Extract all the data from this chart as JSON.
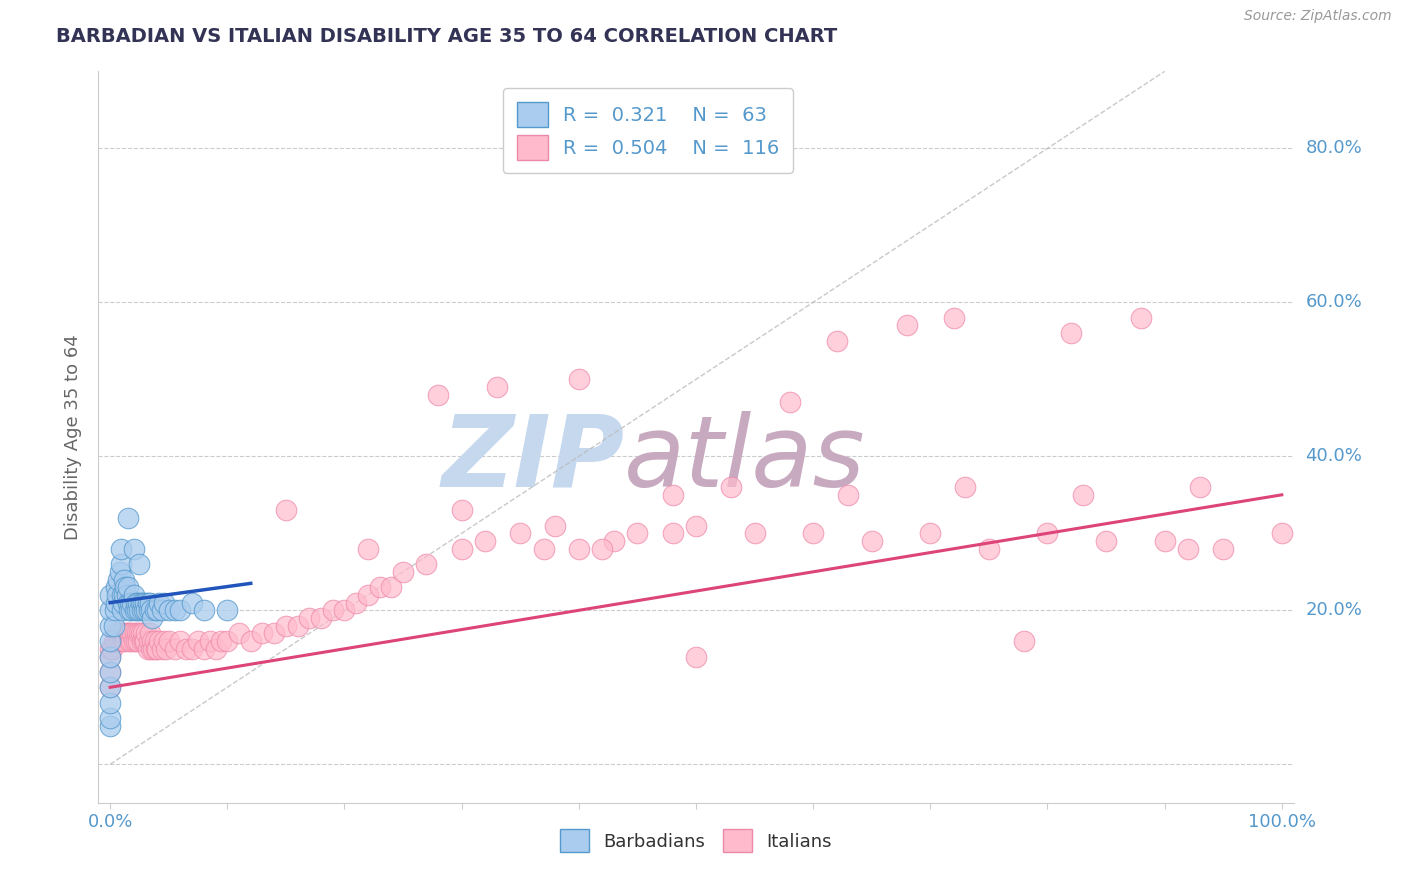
{
  "title": "BARBADIAN VS ITALIAN DISABILITY AGE 35 TO 64 CORRELATION CHART",
  "source_text": "Source: ZipAtlas.com",
  "ylabel": "Disability Age 35 to 64",
  "xlim": [
    -0.01,
    1.01
  ],
  "ylim": [
    -0.05,
    0.9
  ],
  "xtick_positions": [
    0.0,
    0.1,
    0.2,
    0.3,
    0.4,
    0.5,
    0.6,
    0.7,
    0.8,
    0.9,
    1.0
  ],
  "xticklabels": [
    "0.0%",
    "",
    "",
    "",
    "",
    "",
    "",
    "",
    "",
    "",
    "100.0%"
  ],
  "ytick_positions": [
    0.0,
    0.2,
    0.4,
    0.6,
    0.8
  ],
  "yticklabels": [
    "",
    "20.0%",
    "40.0%",
    "60.0%",
    "80.0%"
  ],
  "legend_r_blue": "0.321",
  "legend_n_blue": "63",
  "legend_r_pink": "0.504",
  "legend_n_pink": "116",
  "barbadian_fill": "#aaccee",
  "barbadian_edge": "#5599cc",
  "italian_fill": "#ffbbcc",
  "italian_edge": "#ee88aa",
  "trend_blue": "#2255bb",
  "trend_pink": "#dd4477",
  "diag_color": "#bbbbbb",
  "watermark_zip_color": "#c5d8ee",
  "watermark_atlas_color": "#c8aac0",
  "title_color": "#333355",
  "axis_label_color": "#666666",
  "tick_color": "#5599cc",
  "grid_color": "#cccccc",
  "legend_text_color": "#5599cc",
  "source_color": "#999999",
  "barbadians_x": [
    0.0,
    0.0,
    0.0,
    0.0,
    0.0,
    0.0,
    0.0,
    0.0,
    0.0,
    0.0,
    0.003,
    0.004,
    0.005,
    0.005,
    0.006,
    0.007,
    0.008,
    0.009,
    0.009,
    0.01,
    0.01,
    0.011,
    0.012,
    0.012,
    0.013,
    0.014,
    0.015,
    0.015,
    0.016,
    0.017,
    0.018,
    0.019,
    0.02,
    0.021,
    0.022,
    0.023,
    0.024,
    0.025,
    0.026,
    0.027,
    0.028,
    0.029,
    0.03,
    0.031,
    0.032,
    0.033,
    0.034,
    0.035,
    0.036,
    0.038,
    0.04,
    0.042,
    0.044,
    0.046,
    0.05,
    0.055,
    0.06,
    0.07,
    0.08,
    0.1,
    0.015,
    0.02,
    0.025
  ],
  "barbadians_y": [
    0.05,
    0.06,
    0.08,
    0.1,
    0.12,
    0.14,
    0.16,
    0.18,
    0.2,
    0.22,
    0.18,
    0.2,
    0.21,
    0.23,
    0.22,
    0.24,
    0.25,
    0.26,
    0.28,
    0.2,
    0.22,
    0.21,
    0.22,
    0.24,
    0.23,
    0.22,
    0.21,
    0.23,
    0.2,
    0.21,
    0.2,
    0.21,
    0.22,
    0.2,
    0.21,
    0.2,
    0.21,
    0.2,
    0.21,
    0.2,
    0.21,
    0.2,
    0.21,
    0.2,
    0.21,
    0.2,
    0.21,
    0.2,
    0.19,
    0.2,
    0.2,
    0.21,
    0.2,
    0.21,
    0.2,
    0.2,
    0.2,
    0.21,
    0.2,
    0.2,
    0.32,
    0.28,
    0.26
  ],
  "italians_x": [
    0.0,
    0.0,
    0.0,
    0.0,
    0.002,
    0.003,
    0.004,
    0.005,
    0.006,
    0.007,
    0.008,
    0.009,
    0.01,
    0.011,
    0.012,
    0.013,
    0.014,
    0.015,
    0.016,
    0.017,
    0.018,
    0.019,
    0.02,
    0.021,
    0.022,
    0.023,
    0.024,
    0.025,
    0.026,
    0.027,
    0.028,
    0.029,
    0.03,
    0.031,
    0.032,
    0.033,
    0.034,
    0.035,
    0.036,
    0.037,
    0.038,
    0.039,
    0.04,
    0.042,
    0.044,
    0.046,
    0.048,
    0.05,
    0.055,
    0.06,
    0.065,
    0.07,
    0.075,
    0.08,
    0.085,
    0.09,
    0.095,
    0.1,
    0.11,
    0.12,
    0.13,
    0.14,
    0.15,
    0.16,
    0.17,
    0.18,
    0.19,
    0.2,
    0.21,
    0.22,
    0.23,
    0.24,
    0.25,
    0.27,
    0.3,
    0.32,
    0.35,
    0.38,
    0.4,
    0.43,
    0.45,
    0.48,
    0.5,
    0.55,
    0.6,
    0.65,
    0.7,
    0.75,
    0.8,
    0.85,
    0.9,
    0.95,
    1.0,
    0.5,
    0.15,
    0.22,
    0.3,
    0.37,
    0.42,
    0.28,
    0.33,
    0.4,
    0.62,
    0.68,
    0.72,
    0.82,
    0.88,
    0.78,
    0.58,
    0.92,
    0.48,
    0.53,
    0.63,
    0.73,
    0.83,
    0.93
  ],
  "italians_y": [
    0.1,
    0.12,
    0.14,
    0.15,
    0.15,
    0.16,
    0.16,
    0.17,
    0.16,
    0.17,
    0.16,
    0.17,
    0.17,
    0.16,
    0.17,
    0.16,
    0.17,
    0.17,
    0.16,
    0.17,
    0.16,
    0.17,
    0.16,
    0.17,
    0.16,
    0.17,
    0.16,
    0.17,
    0.17,
    0.16,
    0.17,
    0.16,
    0.16,
    0.17,
    0.15,
    0.16,
    0.17,
    0.15,
    0.16,
    0.15,
    0.16,
    0.15,
    0.15,
    0.16,
    0.15,
    0.16,
    0.15,
    0.16,
    0.15,
    0.16,
    0.15,
    0.15,
    0.16,
    0.15,
    0.16,
    0.15,
    0.16,
    0.16,
    0.17,
    0.16,
    0.17,
    0.17,
    0.18,
    0.18,
    0.19,
    0.19,
    0.2,
    0.2,
    0.21,
    0.22,
    0.23,
    0.23,
    0.25,
    0.26,
    0.28,
    0.29,
    0.3,
    0.31,
    0.28,
    0.29,
    0.3,
    0.3,
    0.31,
    0.3,
    0.3,
    0.29,
    0.3,
    0.28,
    0.3,
    0.29,
    0.29,
    0.28,
    0.3,
    0.14,
    0.33,
    0.28,
    0.33,
    0.28,
    0.28,
    0.48,
    0.49,
    0.5,
    0.55,
    0.57,
    0.58,
    0.56,
    0.58,
    0.16,
    0.47,
    0.28,
    0.35,
    0.36,
    0.35,
    0.36,
    0.35,
    0.36
  ],
  "it_trend_x0": 0.0,
  "it_trend_y0": 0.1,
  "it_trend_x1": 1.0,
  "it_trend_y1": 0.35,
  "ba_trend_x0": 0.0,
  "ba_trend_y0": 0.21,
  "ba_trend_x1": 0.12,
  "ba_trend_y1": 0.235
}
